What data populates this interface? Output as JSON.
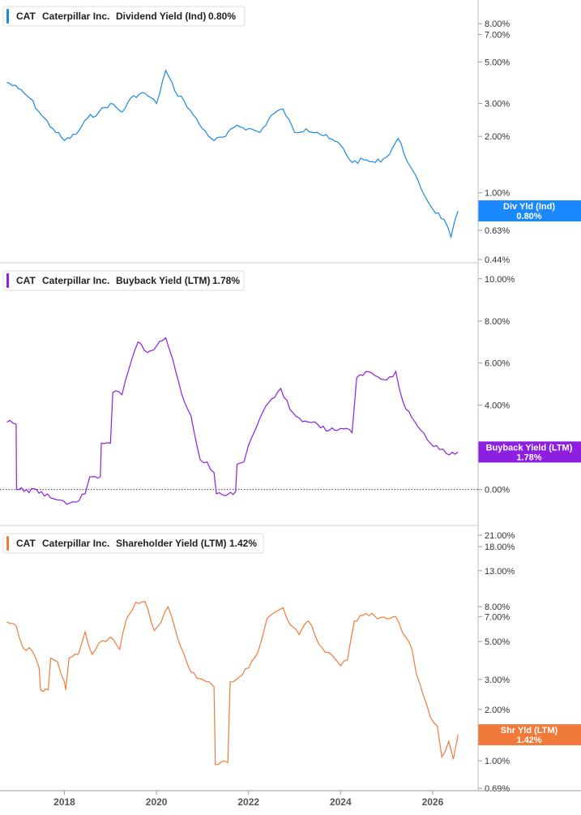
{
  "chart_data": [
    {
      "type": "line",
      "ticker": "CAT",
      "company": "Caterpillar Inc.",
      "metric": "Dividend Yield (Ind)",
      "current_value": "0.80%",
      "color": "#1a88e8",
      "scale": "log",
      "ylim": [
        0.44,
        9.5
      ],
      "y_ticks": [
        {
          "v": 8.0,
          "label": "8.00%"
        },
        {
          "v": 7.0,
          "label": "7.00%"
        },
        {
          "v": 5.0,
          "label": "5.00%"
        },
        {
          "v": 3.0,
          "label": "3.00%"
        },
        {
          "v": 2.0,
          "label": "2.00%"
        },
        {
          "v": 1.0,
          "label": "1.00%"
        },
        {
          "v": 0.63,
          "label": "0.63%"
        },
        {
          "v": 0.44,
          "label": "0.44%"
        }
      ],
      "tag": {
        "title": "Div Yld (Ind)",
        "value": "0.80%",
        "color": "#1a88ff"
      },
      "zero_line": false,
      "series": [
        {
          "x": 2016.75,
          "y": 3.9
        },
        {
          "x": 2017.0,
          "y": 3.6
        },
        {
          "x": 2017.25,
          "y": 3.2
        },
        {
          "x": 2017.5,
          "y": 2.6
        },
        {
          "x": 2017.75,
          "y": 2.2
        },
        {
          "x": 2018.0,
          "y": 1.9
        },
        {
          "x": 2018.25,
          "y": 2.05
        },
        {
          "x": 2018.5,
          "y": 2.5
        },
        {
          "x": 2018.75,
          "y": 2.7
        },
        {
          "x": 2019.0,
          "y": 3.0
        },
        {
          "x": 2019.25,
          "y": 2.7
        },
        {
          "x": 2019.5,
          "y": 3.3
        },
        {
          "x": 2019.75,
          "y": 3.4
        },
        {
          "x": 2020.0,
          "y": 3.0
        },
        {
          "x": 2020.2,
          "y": 4.5
        },
        {
          "x": 2020.4,
          "y": 3.5
        },
        {
          "x": 2020.6,
          "y": 3.1
        },
        {
          "x": 2020.8,
          "y": 2.6
        },
        {
          "x": 2021.0,
          "y": 2.2
        },
        {
          "x": 2021.25,
          "y": 1.9
        },
        {
          "x": 2021.5,
          "y": 2.0
        },
        {
          "x": 2021.75,
          "y": 2.3
        },
        {
          "x": 2022.0,
          "y": 2.2
        },
        {
          "x": 2022.25,
          "y": 2.1
        },
        {
          "x": 2022.5,
          "y": 2.6
        },
        {
          "x": 2022.75,
          "y": 2.8
        },
        {
          "x": 2023.0,
          "y": 2.1
        },
        {
          "x": 2023.25,
          "y": 2.2
        },
        {
          "x": 2023.5,
          "y": 2.1
        },
        {
          "x": 2023.75,
          "y": 1.95
        },
        {
          "x": 2024.0,
          "y": 1.8
        },
        {
          "x": 2024.25,
          "y": 1.45
        },
        {
          "x": 2024.5,
          "y": 1.5
        },
        {
          "x": 2024.75,
          "y": 1.45
        },
        {
          "x": 2025.0,
          "y": 1.55
        },
        {
          "x": 2025.25,
          "y": 1.95
        },
        {
          "x": 2025.5,
          "y": 1.4
        },
        {
          "x": 2025.75,
          "y": 1.05
        },
        {
          "x": 2026.0,
          "y": 0.82
        },
        {
          "x": 2026.25,
          "y": 0.72
        },
        {
          "x": 2026.4,
          "y": 0.58
        },
        {
          "x": 2026.55,
          "y": 0.8
        }
      ]
    },
    {
      "type": "line",
      "ticker": "CAT",
      "company": "Caterpillar Inc.",
      "metric": "Buyback Yield (LTM)",
      "current_value": "1.78%",
      "color": "#8c1fe0",
      "scale": "linear",
      "ylim": [
        -1.4,
        10.3
      ],
      "y_ticks": [
        {
          "v": 10.0,
          "label": "10.00%"
        },
        {
          "v": 8.0,
          "label": "8.00%"
        },
        {
          "v": 6.0,
          "label": "6.00%"
        },
        {
          "v": 4.0,
          "label": "4.00%"
        },
        {
          "v": 0.0,
          "label": "0.00%"
        }
      ],
      "tag": {
        "title": "Buyback Yield (LTM)",
        "value": "1.78%",
        "color": "#8c1fe0"
      },
      "zero_line": true,
      "series": [
        {
          "x": 2016.75,
          "y": 3.2
        },
        {
          "x": 2016.95,
          "y": 3.1
        },
        {
          "x": 2016.96,
          "y": 0.0
        },
        {
          "x": 2017.5,
          "y": -0.1
        },
        {
          "x": 2017.7,
          "y": -0.4
        },
        {
          "x": 2017.9,
          "y": -0.5
        },
        {
          "x": 2018.05,
          "y": -0.7
        },
        {
          "x": 2018.25,
          "y": -0.6
        },
        {
          "x": 2018.45,
          "y": -0.2
        },
        {
          "x": 2018.55,
          "y": 0.6
        },
        {
          "x": 2018.78,
          "y": 0.6
        },
        {
          "x": 2018.8,
          "y": 2.2
        },
        {
          "x": 2019.0,
          "y": 2.2
        },
        {
          "x": 2019.05,
          "y": 4.6
        },
        {
          "x": 2019.25,
          "y": 4.5
        },
        {
          "x": 2019.4,
          "y": 5.7
        },
        {
          "x": 2019.6,
          "y": 7.0
        },
        {
          "x": 2019.8,
          "y": 6.5
        },
        {
          "x": 2020.0,
          "y": 6.8
        },
        {
          "x": 2020.2,
          "y": 7.2
        },
        {
          "x": 2020.35,
          "y": 6.2
        },
        {
          "x": 2020.55,
          "y": 4.5
        },
        {
          "x": 2020.75,
          "y": 3.5
        },
        {
          "x": 2020.95,
          "y": 1.4
        },
        {
          "x": 2021.1,
          "y": 1.3
        },
        {
          "x": 2021.25,
          "y": 0.8
        },
        {
          "x": 2021.3,
          "y": -0.2
        },
        {
          "x": 2021.5,
          "y": -0.3
        },
        {
          "x": 2021.72,
          "y": -0.1
        },
        {
          "x": 2021.75,
          "y": 1.2
        },
        {
          "x": 2021.9,
          "y": 1.3
        },
        {
          "x": 2022.0,
          "y": 2.1
        },
        {
          "x": 2022.25,
          "y": 3.4
        },
        {
          "x": 2022.5,
          "y": 4.3
        },
        {
          "x": 2022.7,
          "y": 4.8
        },
        {
          "x": 2022.9,
          "y": 3.8
        },
        {
          "x": 2023.1,
          "y": 3.4
        },
        {
          "x": 2023.3,
          "y": 3.2
        },
        {
          "x": 2023.5,
          "y": 3.1
        },
        {
          "x": 2023.75,
          "y": 2.8
        },
        {
          "x": 2024.0,
          "y": 2.9
        },
        {
          "x": 2024.25,
          "y": 2.7
        },
        {
          "x": 2024.35,
          "y": 5.3
        },
        {
          "x": 2024.55,
          "y": 5.6
        },
        {
          "x": 2024.75,
          "y": 5.4
        },
        {
          "x": 2025.0,
          "y": 5.2
        },
        {
          "x": 2025.2,
          "y": 5.6
        },
        {
          "x": 2025.35,
          "y": 4.2
        },
        {
          "x": 2025.55,
          "y": 3.4
        },
        {
          "x": 2025.75,
          "y": 2.8
        },
        {
          "x": 2025.95,
          "y": 2.2
        },
        {
          "x": 2026.15,
          "y": 1.9
        },
        {
          "x": 2026.3,
          "y": 1.7
        },
        {
          "x": 2026.55,
          "y": 1.78
        }
      ]
    },
    {
      "type": "line",
      "ticker": "CAT",
      "company": "Caterpillar Inc.",
      "metric": "Shareholder Yield (LTM)",
      "current_value": "1.42%",
      "color": "#f07a3a",
      "scale": "log",
      "ylim": [
        0.69,
        21.0
      ],
      "y_ticks": [
        {
          "v": 21.0,
          "label": "21.00%"
        },
        {
          "v": 18.0,
          "label": "18.00%"
        },
        {
          "v": 13.0,
          "label": "13.00%"
        },
        {
          "v": 8.0,
          "label": "8.00%"
        },
        {
          "v": 7.0,
          "label": "7.00%"
        },
        {
          "v": 5.0,
          "label": "5.00%"
        },
        {
          "v": 3.0,
          "label": "3.00%"
        },
        {
          "v": 2.0,
          "label": "2.00%"
        },
        {
          "v": 1.0,
          "label": "1.00%"
        },
        {
          "v": 0.69,
          "label": "0.69%"
        }
      ],
      "tag": {
        "title": "Shr Yld (LTM)",
        "value": "1.42%",
        "color": "#f07a3a"
      },
      "zero_line": false,
      "series": [
        {
          "x": 2016.75,
          "y": 6.5
        },
        {
          "x": 2016.95,
          "y": 6.2
        },
        {
          "x": 2017.1,
          "y": 4.6
        },
        {
          "x": 2017.3,
          "y": 4.4
        },
        {
          "x": 2017.45,
          "y": 3.5
        },
        {
          "x": 2017.48,
          "y": 2.6
        },
        {
          "x": 2017.65,
          "y": 2.6
        },
        {
          "x": 2017.7,
          "y": 4.0
        },
        {
          "x": 2017.85,
          "y": 3.8
        },
        {
          "x": 2018.0,
          "y": 2.9
        },
        {
          "x": 2018.03,
          "y": 2.6
        },
        {
          "x": 2018.1,
          "y": 4.0
        },
        {
          "x": 2018.3,
          "y": 4.2
        },
        {
          "x": 2018.45,
          "y": 5.7
        },
        {
          "x": 2018.6,
          "y": 4.2
        },
        {
          "x": 2018.75,
          "y": 4.9
        },
        {
          "x": 2018.9,
          "y": 5.0
        },
        {
          "x": 2019.0,
          "y": 5.3
        },
        {
          "x": 2019.2,
          "y": 4.5
        },
        {
          "x": 2019.35,
          "y": 6.8
        },
        {
          "x": 2019.55,
          "y": 8.5
        },
        {
          "x": 2019.75,
          "y": 8.6
        },
        {
          "x": 2019.95,
          "y": 5.8
        },
        {
          "x": 2020.1,
          "y": 6.5
        },
        {
          "x": 2020.25,
          "y": 8.0
        },
        {
          "x": 2020.4,
          "y": 6.0
        },
        {
          "x": 2020.6,
          "y": 4.2
        },
        {
          "x": 2020.75,
          "y": 3.3
        },
        {
          "x": 2021.0,
          "y": 3.0
        },
        {
          "x": 2021.15,
          "y": 2.9
        },
        {
          "x": 2021.25,
          "y": 2.7
        },
        {
          "x": 2021.28,
          "y": 0.95
        },
        {
          "x": 2021.45,
          "y": 1.0
        },
        {
          "x": 2021.55,
          "y": 0.98
        },
        {
          "x": 2021.6,
          "y": 2.9
        },
        {
          "x": 2021.8,
          "y": 3.1
        },
        {
          "x": 2022.0,
          "y": 3.5
        },
        {
          "x": 2022.2,
          "y": 4.3
        },
        {
          "x": 2022.4,
          "y": 6.8
        },
        {
          "x": 2022.6,
          "y": 7.5
        },
        {
          "x": 2022.75,
          "y": 7.9
        },
        {
          "x": 2022.9,
          "y": 6.3
        },
        {
          "x": 2023.1,
          "y": 5.5
        },
        {
          "x": 2023.3,
          "y": 6.6
        },
        {
          "x": 2023.45,
          "y": 5.4
        },
        {
          "x": 2023.6,
          "y": 4.6
        },
        {
          "x": 2023.8,
          "y": 4.2
        },
        {
          "x": 2024.0,
          "y": 3.6
        },
        {
          "x": 2024.15,
          "y": 3.9
        },
        {
          "x": 2024.3,
          "y": 6.6
        },
        {
          "x": 2024.55,
          "y": 7.3
        },
        {
          "x": 2024.75,
          "y": 7.0
        },
        {
          "x": 2025.0,
          "y": 6.8
        },
        {
          "x": 2025.2,
          "y": 7.0
        },
        {
          "x": 2025.35,
          "y": 5.6
        },
        {
          "x": 2025.55,
          "y": 4.5
        },
        {
          "x": 2025.65,
          "y": 3.2
        },
        {
          "x": 2025.8,
          "y": 2.4
        },
        {
          "x": 2025.95,
          "y": 1.8
        },
        {
          "x": 2026.1,
          "y": 1.6
        },
        {
          "x": 2026.2,
          "y": 1.05
        },
        {
          "x": 2026.35,
          "y": 1.3
        },
        {
          "x": 2026.45,
          "y": 1.02
        },
        {
          "x": 2026.55,
          "y": 1.42
        }
      ]
    }
  ],
  "x_axis": {
    "range": [
      2016.6,
      2026.6
    ],
    "ticks": [
      {
        "v": 2018,
        "label": "2018"
      },
      {
        "v": 2020,
        "label": "2020"
      },
      {
        "v": 2022,
        "label": "2022"
      },
      {
        "v": 2024,
        "label": "2024"
      },
      {
        "v": 2026,
        "label": "2026"
      }
    ]
  }
}
